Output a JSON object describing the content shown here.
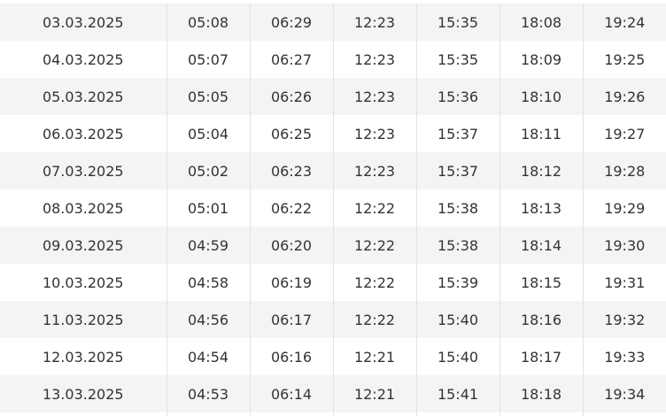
{
  "rows": [
    [
      "03.03.2025",
      "05:08",
      "06:29",
      "12:23",
      "15:35",
      "18:08",
      "19:24"
    ],
    [
      "04.03.2025",
      "05:07",
      "06:27",
      "12:23",
      "15:35",
      "18:09",
      "19:25"
    ],
    [
      "05.03.2025",
      "05:05",
      "06:26",
      "12:23",
      "15:36",
      "18:10",
      "19:26"
    ],
    [
      "06.03.2025",
      "05:04",
      "06:25",
      "12:23",
      "15:37",
      "18:11",
      "19:27"
    ],
    [
      "07.03.2025",
      "05:02",
      "06:23",
      "12:23",
      "15:37",
      "18:12",
      "19:28"
    ],
    [
      "08.03.2025",
      "05:01",
      "06:22",
      "12:22",
      "15:38",
      "18:13",
      "19:29"
    ],
    [
      "09.03.2025",
      "04:59",
      "06:20",
      "12:22",
      "15:38",
      "18:14",
      "19:30"
    ],
    [
      "10.03.2025",
      "04:58",
      "06:19",
      "12:22",
      "15:39",
      "18:15",
      "19:31"
    ],
    [
      "11.03.2025",
      "04:56",
      "06:17",
      "12:22",
      "15:40",
      "18:16",
      "19:32"
    ],
    [
      "12.03.2025",
      "04:54",
      "06:16",
      "12:21",
      "15:40",
      "18:17",
      "19:33"
    ],
    [
      "13.03.2025",
      "04:53",
      "06:14",
      "12:21",
      "15:41",
      "18:18",
      "19:34"
    ]
  ],
  "colors": {
    "stripe": "#f4f4f4",
    "border": "#e2e2e2",
    "text": "#333333"
  }
}
